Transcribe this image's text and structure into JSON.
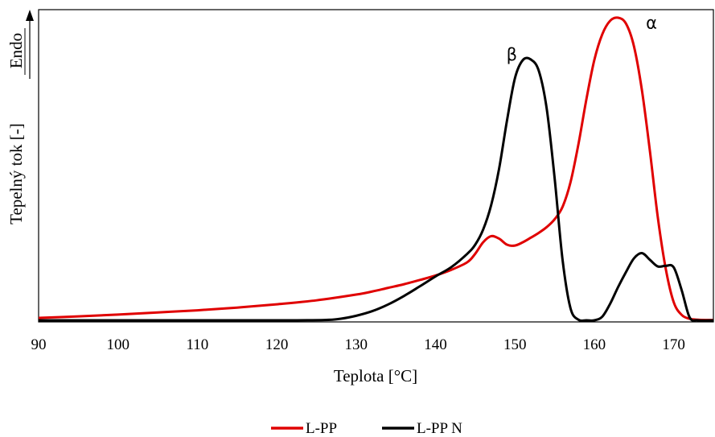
{
  "chart_data": {
    "type": "line",
    "xlabel": "Teplota [°C]",
    "ylabel": "Tepelný tok [-]",
    "ylabel_direction": "Endo",
    "xlim": [
      90,
      175
    ],
    "ylim": [
      0,
      1
    ],
    "x_ticks": [
      "90",
      "100",
      "110",
      "120",
      "130",
      "140",
      "150",
      "160",
      "170"
    ],
    "x_tick_values": [
      90,
      100,
      110,
      120,
      130,
      140,
      150,
      160,
      170
    ],
    "grid": false,
    "legend_position": "bottom",
    "annotations": [
      {
        "text": "β",
        "x": 149.6,
        "y": 0.877
      },
      {
        "text": "α",
        "x": 167.2,
        "y": 0.983
      }
    ],
    "series": [
      {
        "name": "L-PP",
        "color": "#e00000",
        "x": [
          90,
          95,
          100,
          105,
          110,
          115,
          120,
          125,
          130,
          132,
          134,
          136,
          138,
          140,
          142,
          144,
          145,
          146,
          147,
          148,
          149,
          150,
          151,
          152,
          153,
          154,
          155,
          156,
          157,
          158,
          159,
          160,
          161,
          162,
          163,
          164,
          165,
          166,
          167,
          168,
          169,
          170,
          171,
          172,
          173,
          174,
          175
        ],
        "y": [
          0.008,
          0.013,
          0.019,
          0.026,
          0.033,
          0.042,
          0.053,
          0.066,
          0.085,
          0.095,
          0.107,
          0.119,
          0.133,
          0.148,
          0.167,
          0.192,
          0.22,
          0.258,
          0.278,
          0.27,
          0.25,
          0.247,
          0.258,
          0.273,
          0.289,
          0.308,
          0.334,
          0.375,
          0.456,
          0.582,
          0.73,
          0.86,
          0.945,
          0.99,
          1.0,
          0.98,
          0.905,
          0.76,
          0.56,
          0.34,
          0.17,
          0.06,
          0.018,
          0.005,
          0.002,
          0.001,
          0.001
        ]
      },
      {
        "name": "L-PP N",
        "color": "#000000",
        "x": [
          90,
          100,
          110,
          120,
          126,
          128,
          130,
          132,
          134,
          136,
          138,
          140,
          142,
          144,
          145,
          146,
          147,
          148,
          149,
          150,
          151,
          152,
          153,
          154,
          155,
          156,
          157,
          158,
          159,
          160,
          161,
          162,
          163,
          164,
          165,
          166,
          167,
          168,
          169,
          170,
          171,
          172,
          173,
          175
        ],
        "y": [
          0.0,
          0.0,
          0.0,
          0.0,
          0.001,
          0.005,
          0.015,
          0.03,
          0.052,
          0.08,
          0.112,
          0.145,
          0.176,
          0.22,
          0.25,
          0.3,
          0.38,
          0.5,
          0.66,
          0.8,
          0.86,
          0.862,
          0.825,
          0.7,
          0.47,
          0.2,
          0.04,
          0.002,
          0.0,
          0.0,
          0.012,
          0.055,
          0.11,
          0.16,
          0.205,
          0.222,
          0.2,
          0.178,
          0.18,
          0.175,
          0.1,
          0.01,
          0.0,
          0.0
        ]
      }
    ]
  }
}
